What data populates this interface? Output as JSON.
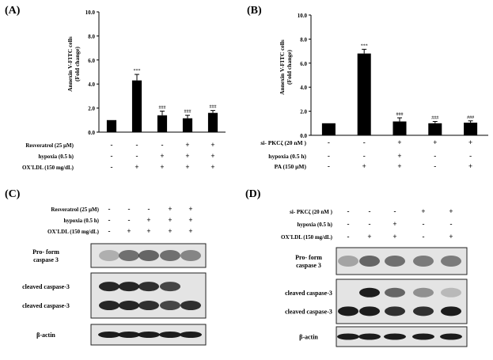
{
  "panels": {
    "A": {
      "label": "(A)",
      "chart_data": {
        "type": "bar",
        "ylabel": "Annexin V-FITC cells",
        "ylabel2": "(Fold change)",
        "ylim": [
          0,
          10
        ],
        "yticks": [
          "0.0",
          "2.0",
          "4.0",
          "6.0",
          "8.0",
          "10.0"
        ],
        "values": [
          1.0,
          4.3,
          1.4,
          1.15,
          1.6
        ],
        "errors": [
          0,
          0.5,
          0.35,
          0.25,
          0.2
        ],
        "marks": [
          "",
          "***",
          "###",
          "###",
          "###"
        ],
        "rows": [
          {
            "label": "Resveratrol (25 µM)",
            "signs": [
              "-",
              "-",
              "-",
              "+",
              "+"
            ]
          },
          {
            "label": "hypoxia (0.5 h)",
            "signs": [
              "-",
              "-",
              "+",
              "+",
              "+"
            ]
          },
          {
            "label": "OX'LDL (150 mg/dL)",
            "signs": [
              "-",
              "+",
              "+",
              "+",
              "+"
            ]
          }
        ]
      }
    },
    "B": {
      "label": "(B)",
      "chart_data": {
        "type": "bar",
        "ylabel": "Annexin V-FITC cells",
        "ylabel2": "(Fold change)",
        "ylim": [
          0,
          10
        ],
        "yticks": [
          "0.0",
          "2.0",
          "4.0",
          "6.0",
          "8.0",
          "10.0"
        ],
        "values": [
          1.0,
          6.8,
          1.15,
          1.0,
          1.05
        ],
        "errors": [
          0,
          0.35,
          0.3,
          0.15,
          0.15
        ],
        "marks": [
          "",
          "***",
          "###",
          "###",
          "###"
        ],
        "rows": [
          {
            "label": "si- PKCζ (20 nM )",
            "signs": [
              "-",
              "-",
              "+",
              "+",
              "+"
            ]
          },
          {
            "label": "hypoxia  (0.5 h)",
            "signs": [
              "-",
              "-",
              "+",
              "-",
              "-"
            ]
          },
          {
            "label": "PA (150 µM)",
            "signs": [
              "-",
              "+",
              "+",
              "-",
              "+"
            ]
          }
        ]
      }
    },
    "C": {
      "label": "(C)",
      "rows": [
        {
          "label": "Resveratrol (25 µM)",
          "signs": [
            "-",
            "-",
            "-",
            "+",
            "+"
          ]
        },
        {
          "label": "hypoxia (0.5 h)",
          "signs": [
            "-",
            "-",
            "+",
            "+",
            "+"
          ]
        },
        {
          "label": "OX'LDL (150 mg/dL)",
          "signs": [
            "-",
            "+",
            "+",
            "+",
            "+"
          ]
        }
      ],
      "blot_labels": {
        "pro1": "Pro- form",
        "pro2": "caspase 3",
        "cleaved1": "cleaved caspase-3",
        "cleaved2": "cleaved caspase-3",
        "actin": "β-actin"
      }
    },
    "D": {
      "label": "(D)",
      "rows": [
        {
          "label": "si- PKCζ (20 nM )",
          "signs": [
            "-",
            "-",
            "-",
            "+",
            "+"
          ]
        },
        {
          "label": "hypoxia (0.5 h)",
          "signs": [
            "-",
            "-",
            "+",
            "-",
            "-"
          ]
        },
        {
          "label": "OX'LDL (150 mg/dL)",
          "signs": [
            "-",
            "+",
            "+",
            "-",
            "+"
          ]
        }
      ],
      "blot_labels": {
        "pro1": "Pro- form",
        "pro2": "caspase 3",
        "cleaved1": "cleaved caspase-3",
        "cleaved2": "cleaved caspase-3",
        "actin": "β-actin"
      }
    }
  }
}
